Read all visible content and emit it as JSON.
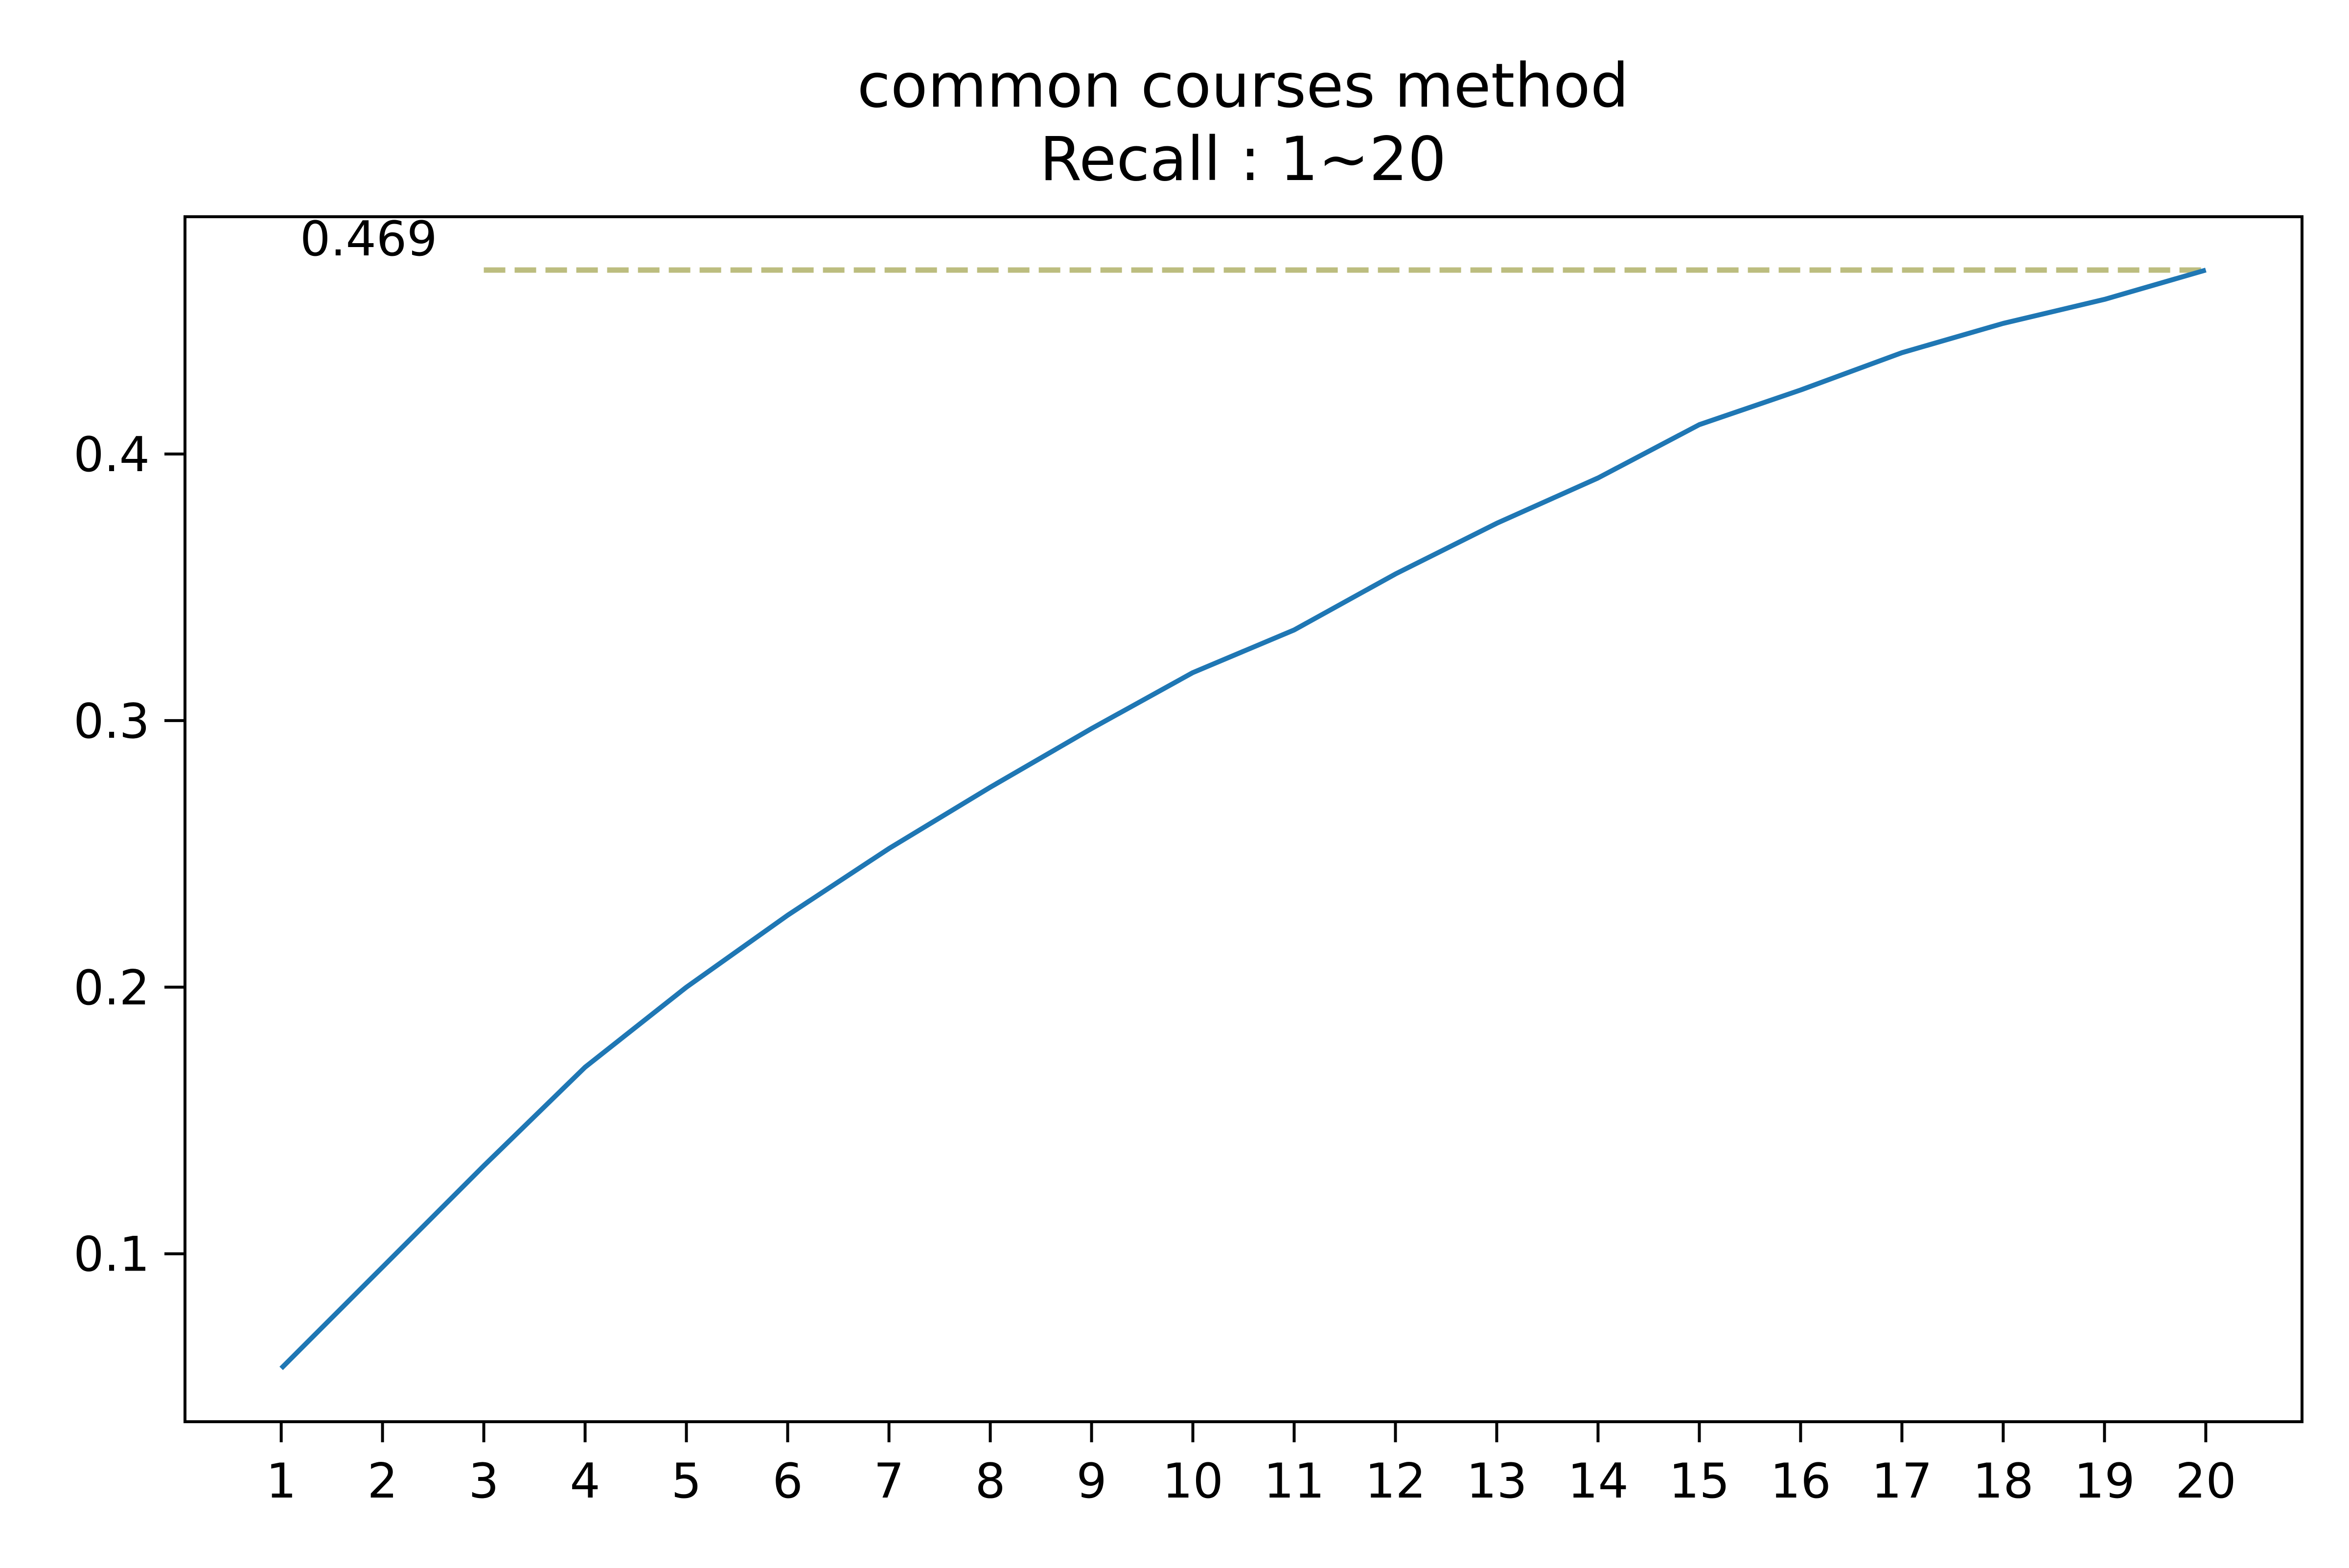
{
  "chart_data": {
    "type": "line",
    "title": "common courses method",
    "subtitle": "Recall : 1~20",
    "xlabel": "",
    "ylabel": "",
    "x": [
      1,
      2,
      3,
      4,
      5,
      6,
      7,
      8,
      9,
      10,
      11,
      12,
      13,
      14,
      15,
      16,
      17,
      18,
      19,
      20
    ],
    "x_tick_labels": [
      "1",
      "2",
      "3",
      "4",
      "5",
      "6",
      "7",
      "8",
      "9",
      "10",
      "11",
      "12",
      "13",
      "14",
      "15",
      "16",
      "17",
      "18",
      "19",
      "20"
    ],
    "y_ticks": [
      0.1,
      0.2,
      0.3,
      0.4
    ],
    "y_tick_labels": [
      "0.1",
      "0.2",
      "0.3",
      "0.4"
    ],
    "xlim": [
      0.05,
      20.95
    ],
    "ylim": [
      0.037,
      0.489
    ],
    "series": [
      {
        "values": [
          0.057,
          0.095,
          0.133,
          0.17,
          0.2,
          0.227,
          0.252,
          0.275,
          0.297,
          0.318,
          0.334,
          0.355,
          0.374,
          0.391,
          0.411,
          0.424,
          0.438,
          0.449,
          0.458,
          0.469
        ],
        "color": "#1f77b4"
      }
    ],
    "reference_line": {
      "value": 0.469,
      "x_start": 3,
      "x_end": 20,
      "style": "dashed",
      "color": "#bcbd7f",
      "label": "0.469"
    },
    "grid": false,
    "legend": "none"
  }
}
